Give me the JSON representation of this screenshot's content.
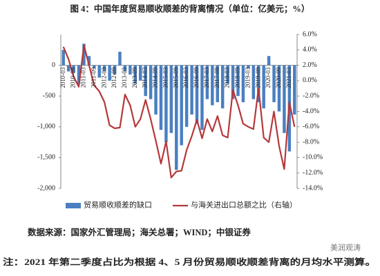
{
  "chart_data": {
    "type": "bar",
    "title": "图 4：中国年度贸易顺收顺差的背离情况（单位：亿美元；%）",
    "categories": [
      "2010-03",
      null,
      "2010-09",
      null,
      "2011-03",
      null,
      "2011-09",
      null,
      "2012-03",
      null,
      "2012-09",
      null,
      "2013-03",
      null,
      "2013-09",
      null,
      "2014-03",
      null,
      "2014-09",
      null,
      "2015-03",
      null,
      "2015-09",
      null,
      "2016-03",
      null,
      "2016-09",
      null,
      "2017-03",
      null,
      "2017-09",
      null,
      "2018-03",
      null,
      "2018-09",
      null,
      "2019-03",
      null,
      "2019-09",
      null,
      "2020-03",
      null,
      "2020-09",
      null,
      "2021-03",
      null
    ],
    "series": [
      {
        "name": "贸易顺收顺差的缺口",
        "type": "bar",
        "color": "#4a7fc1",
        "values": [
          250,
          -100,
          -120,
          -300,
          350,
          150,
          -50,
          -200,
          -100,
          -250,
          -150,
          220,
          -100,
          -150,
          -300,
          -250,
          -500,
          -550,
          -800,
          -1050,
          -1250,
          -1100,
          -1700,
          -1300,
          -1000,
          -800,
          -950,
          -1050,
          -550,
          -650,
          -600,
          -700,
          -300,
          -550,
          -500,
          -600,
          -50,
          -550,
          -600,
          -700,
          150,
          -600,
          -750,
          -1100,
          -1400,
          -800
        ]
      },
      {
        "name": "与海关进出口总额之比（右轴）",
        "type": "line",
        "axis": "y2",
        "color": "#b5373a",
        "values": [
          4.4,
          2.8,
          0.5,
          -0.8,
          4.6,
          2.0,
          -0.6,
          -1.4,
          -2.8,
          -5.8,
          -6.2,
          -6.1,
          -1.8,
          -3.2,
          -6.0,
          -5.0,
          -2.5,
          -5.0,
          -7.8,
          -10.8,
          -7.9,
          -12.6,
          -11.8,
          -11.7,
          -9.0,
          -7.2,
          -5.1,
          -7.5,
          -5.0,
          -6.6,
          -4.6,
          -7.1,
          -7.4,
          -1.2,
          -3.2,
          -5.6,
          -6.0,
          -6.3,
          -1.0,
          -7.4,
          -8.0,
          -4.0,
          -8.5,
          -11.5,
          -2.8,
          -6.0
        ]
      }
    ],
    "ylim": [
      -2000,
      500
    ],
    "yticks": [
      0,
      -500,
      {
        "value": -1000,
        "label": "-1,000"
      },
      {
        "value": -1500,
        "label": "-1,500"
      },
      {
        "value": -2000,
        "label": "-2,000"
      }
    ],
    "y2lim": [
      -14,
      6
    ],
    "y2ticks": [
      {
        "value": 6,
        "label": "6.0%"
      },
      {
        "value": 4,
        "label": "4.0%"
      },
      {
        "value": 2,
        "label": "2.0%"
      },
      {
        "value": 0,
        "label": "0.0%"
      },
      {
        "value": -2,
        "label": "-2.0%"
      },
      {
        "value": -4,
        "label": "-4.0%"
      },
      {
        "value": -6,
        "label": "-6.0%"
      },
      {
        "value": -8,
        "label": "-8.0%"
      },
      {
        "value": -10,
        "label": "-10.0%"
      },
      {
        "value": -12,
        "label": "-12.0%"
      },
      {
        "value": -14,
        "label": "-14.0%"
      }
    ],
    "grid": false,
    "legend": "bottom",
    "source": "数据来源：国家外汇管理局；海关总署；WIND；中银证券",
    "note": "注：2021 年第二季度占比为根据 4、5 月份贸易顺收顺差背离的月均水平测算。",
    "watermark": "美润观涛"
  }
}
